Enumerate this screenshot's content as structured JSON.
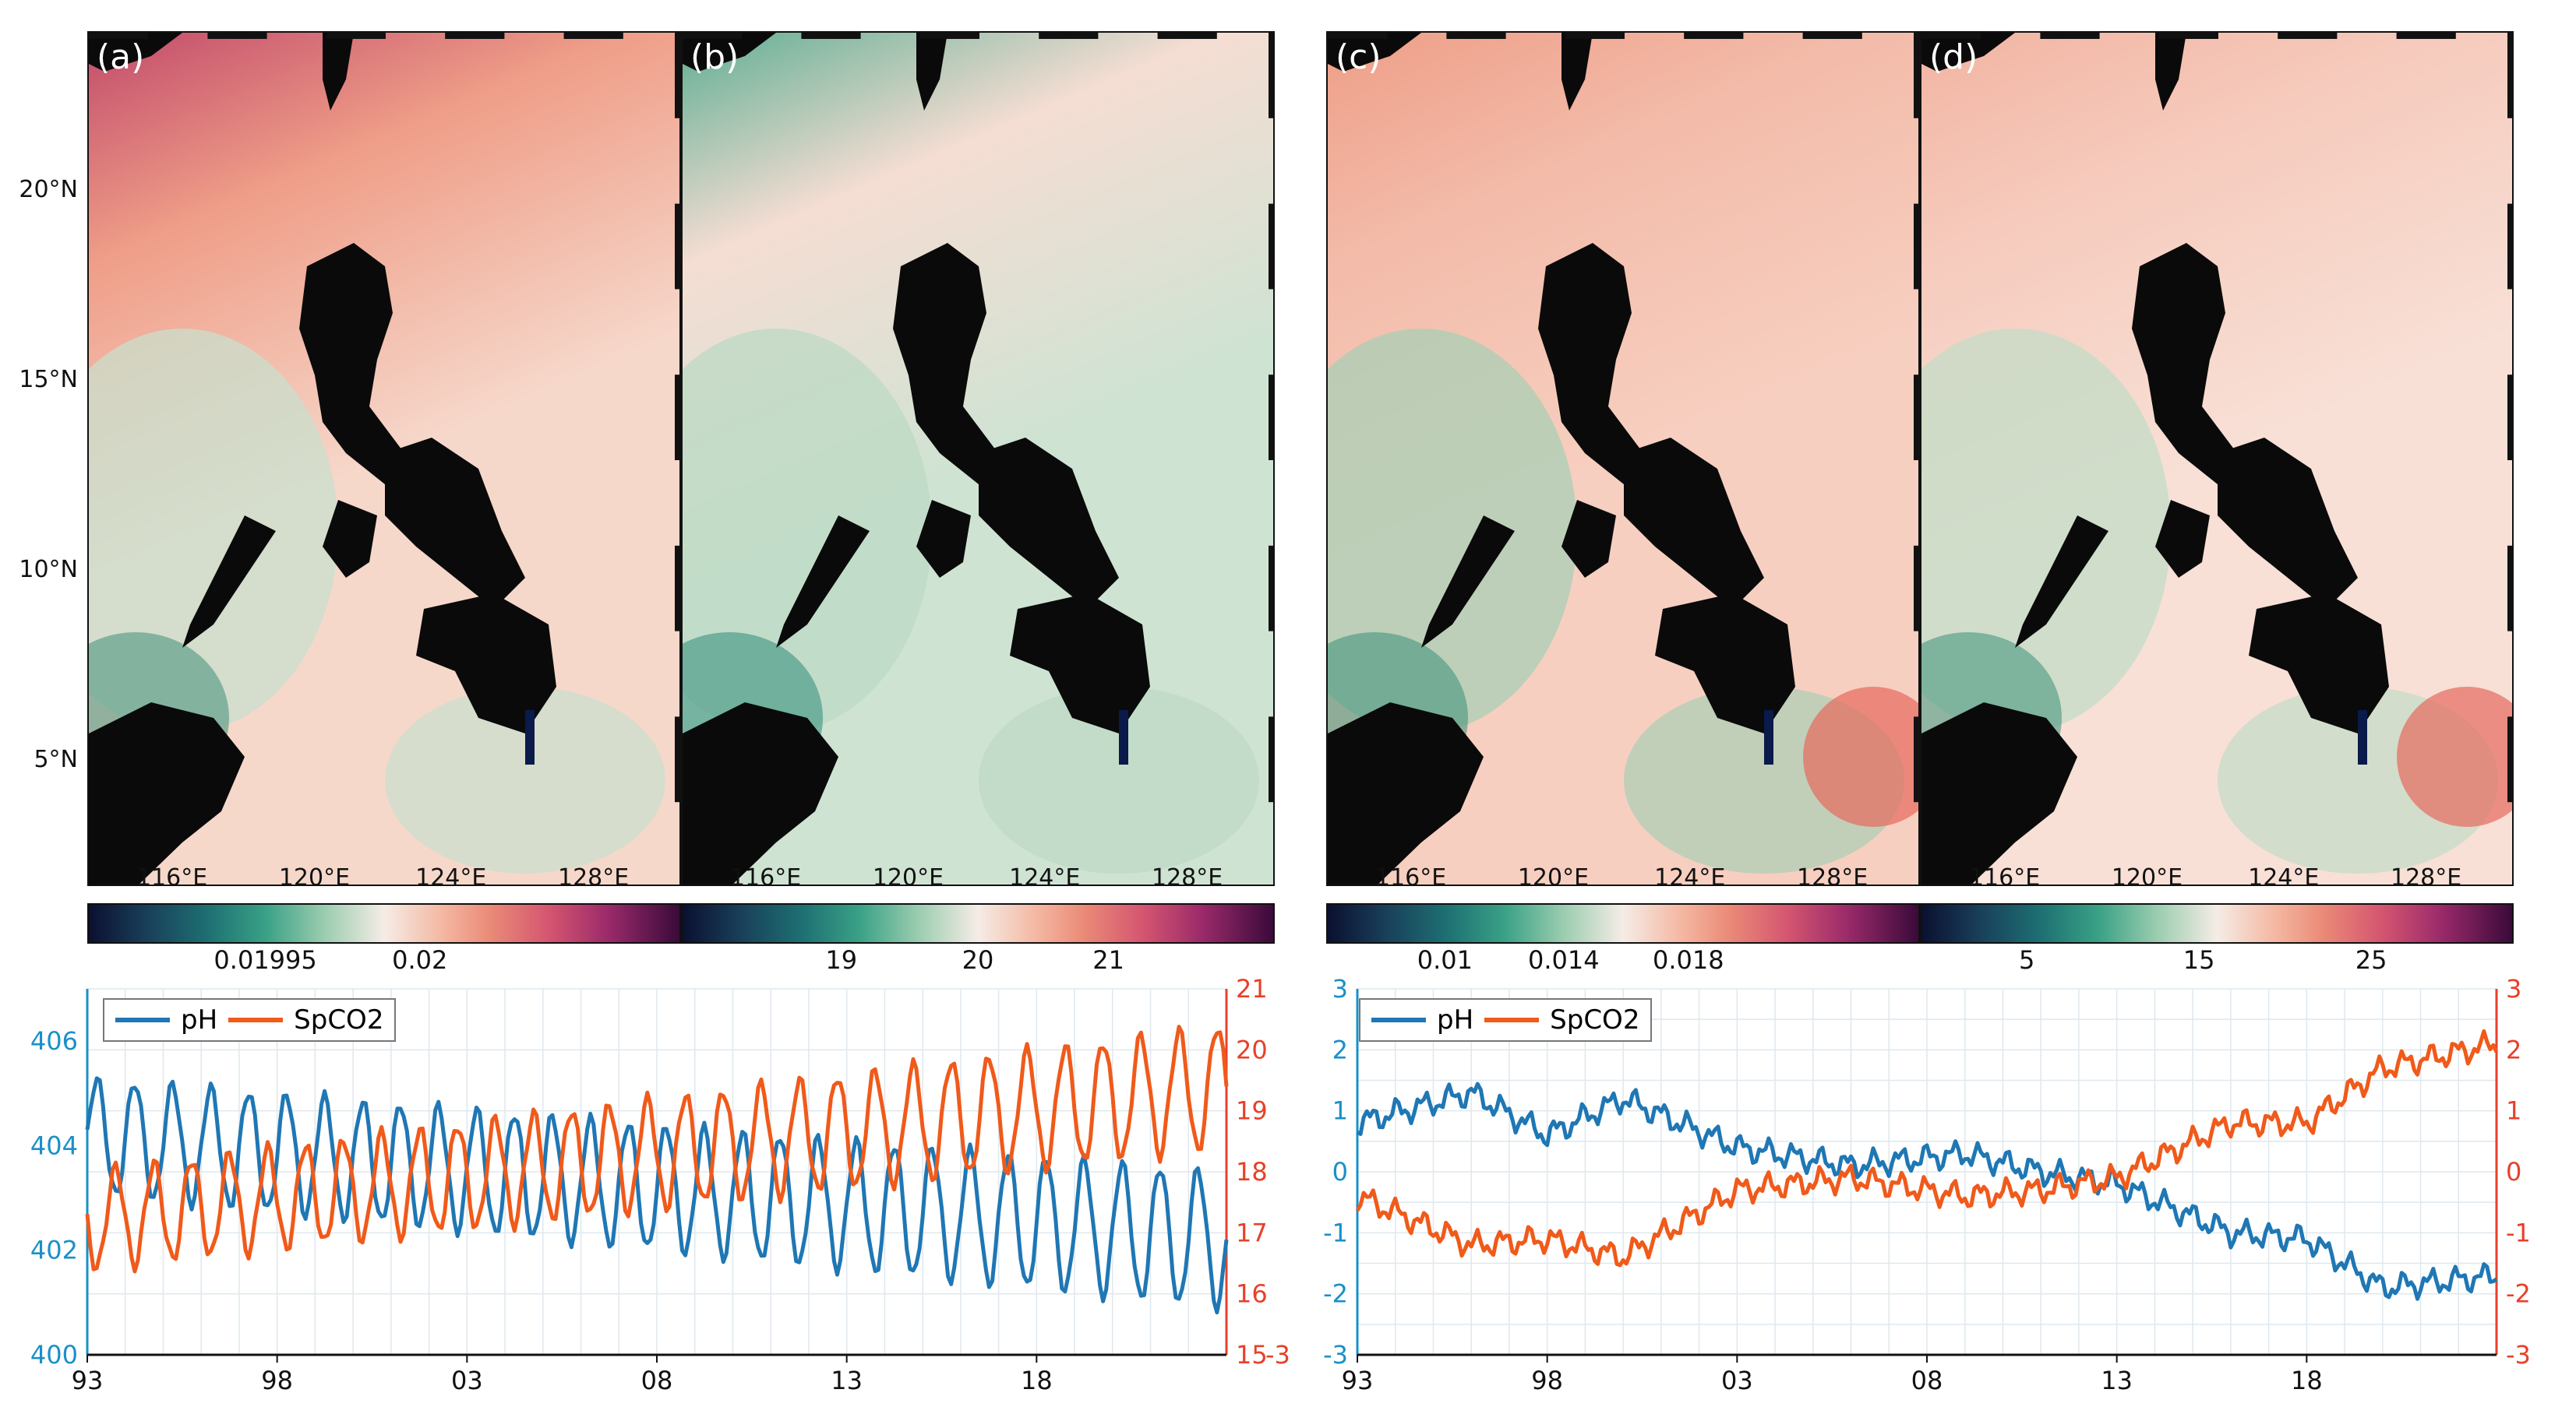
{
  "panels": [
    {
      "id": "a",
      "label": "(a)"
    },
    {
      "id": "b",
      "label": "(b)"
    },
    {
      "id": "c",
      "label": "(c)"
    },
    {
      "id": "d",
      "label": "(d)"
    }
  ],
  "map_axes": {
    "lat_ticks": [
      "20°N",
      "15°N",
      "10°N",
      "5°N"
    ],
    "lon_ticks": [
      "116°E",
      "120°E",
      "124°E",
      "128°E"
    ]
  },
  "colorbars": [
    {
      "ticks": [
        "0.01995",
        "0.02"
      ]
    },
    {
      "ticks": [
        "19",
        "20",
        "21"
      ]
    },
    {
      "ticks": [
        "0.01",
        "0.014",
        "0.018"
      ]
    },
    {
      "ticks": [
        "5",
        "15",
        "25"
      ]
    }
  ],
  "colors": {
    "land": "#0a0a0a",
    "ph_line": "#1f77b4",
    "spco2_line": "#f05a1a",
    "left_axis": "#1a90c8",
    "right_axis": "#e8402a"
  },
  "chart_data": [
    {
      "type": "line",
      "panel": "bottom-left",
      "x_ticks": [
        "93",
        "98",
        "03",
        "08",
        "13",
        "18"
      ],
      "y_left_ticks": [
        "400",
        "402",
        "404",
        "406"
      ],
      "y_right_ticks": [
        "15",
        "16",
        "17",
        "18",
        "19",
        "20",
        "21"
      ],
      "y_right_ticks_aux": [
        "-3"
      ],
      "ylim_left": [
        400,
        407
      ],
      "ylim_right": [
        15,
        21
      ],
      "legend": {
        "placement": "top-left",
        "entries": [
          "pH",
          "SpCO2"
        ]
      },
      "series": [
        {
          "name": "pH",
          "axis": "left",
          "mean_start": 404.2,
          "mean_end": 402.2,
          "amplitude_start": 1.1,
          "amplitude_end": 1.3
        },
        {
          "name": "SpCO2",
          "axis": "right",
          "mean_start": 17.2,
          "mean_end": 19.4,
          "amplitude_start": 0.8,
          "amplitude_end": 1.0
        }
      ],
      "x_range_years": [
        1993,
        2023
      ],
      "grid": true
    },
    {
      "type": "line",
      "panel": "bottom-right",
      "x_ticks": [
        "93",
        "98",
        "03",
        "08",
        "13",
        "18"
      ],
      "y_left_ticks": [
        "-3",
        "-2",
        "-1",
        "0",
        "1",
        "2",
        "3"
      ],
      "y_right_ticks": [
        "-3",
        "-2",
        "-1",
        "0",
        "1",
        "2",
        "3"
      ],
      "ylim_left": [
        -3,
        3
      ],
      "ylim_right": [
        -3,
        3
      ],
      "legend": {
        "placement": "top-left",
        "entries": [
          "pH",
          "SpCO2"
        ]
      },
      "series": [
        {
          "name": "pH",
          "axis": "left",
          "anchors": [
            [
              1993,
              0.8
            ],
            [
              1996,
              1.3
            ],
            [
              1998,
              0.6
            ],
            [
              2000,
              1.2
            ],
            [
              2003,
              0.4
            ],
            [
              2006,
              0.1
            ],
            [
              2009,
              0.3
            ],
            [
              2011,
              0.0
            ],
            [
              2013,
              -0.2
            ],
            [
              2016,
              -1.0
            ],
            [
              2018,
              -1.1
            ],
            [
              2020,
              -1.9
            ],
            [
              2023,
              -1.7
            ]
          ]
        },
        {
          "name": "SpCO2",
          "axis": "right",
          "anchors": [
            [
              1993,
              -0.4
            ],
            [
              1996,
              -1.2
            ],
            [
              1998,
              -1.1
            ],
            [
              2000,
              -1.4
            ],
            [
              2003,
              -0.3
            ],
            [
              2006,
              -0.1
            ],
            [
              2009,
              -0.4
            ],
            [
              2011,
              -0.3
            ],
            [
              2013,
              -0.1
            ],
            [
              2016,
              0.8
            ],
            [
              2018,
              0.8
            ],
            [
              2020,
              1.7
            ],
            [
              2023,
              2.1
            ]
          ]
        }
      ],
      "x_range_years": [
        1993,
        2023
      ],
      "grid": true
    }
  ]
}
